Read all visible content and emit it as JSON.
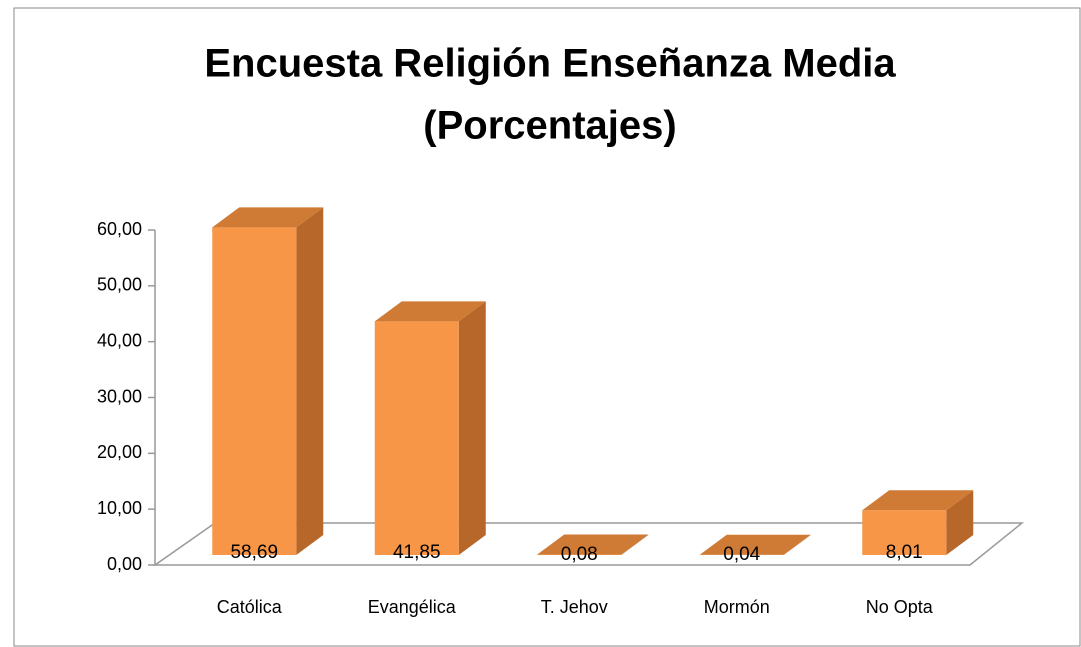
{
  "chart_data": {
    "type": "bar3d",
    "title": "Encuesta Religión Enseñanza Media",
    "subtitle": "(Porcentajes)",
    "categories": [
      "Católica",
      "Evangélica",
      "T. Jehov",
      "Mormón",
      "No Opta"
    ],
    "values": [
      58.69,
      41.85,
      0.08,
      0.04,
      8.01
    ],
    "value_labels": [
      "58,69",
      "41,85",
      "0,08",
      "0,04",
      "8,01"
    ],
    "color": "#f79646",
    "ylim": [
      0,
      60
    ],
    "yticks": [
      {
        "value": 0,
        "label": "0,00"
      },
      {
        "value": 10,
        "label": "10,00"
      },
      {
        "value": 20,
        "label": "20,00"
      },
      {
        "value": 30,
        "label": "30,00"
      },
      {
        "value": 40,
        "label": "40,00"
      },
      {
        "value": 50,
        "label": "50,00"
      },
      {
        "value": 60,
        "label": "60,00"
      }
    ],
    "grid": false
  }
}
